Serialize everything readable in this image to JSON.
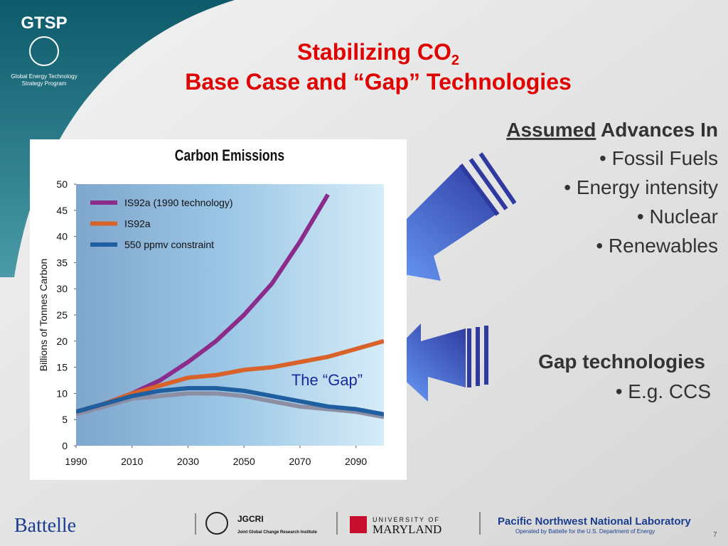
{
  "header": {
    "logo": "GTSP",
    "logo_sub1": "Global Energy Technology",
    "logo_sub2": "Strategy Program"
  },
  "title": {
    "main": "Stabilizing CO",
    "sub": "2",
    "line2": "Base Case and “Gap” Technologies"
  },
  "advances": {
    "heading_underlined": "Assumed",
    "heading_rest": " Advances In",
    "items": [
      "• Fossil Fuels",
      "• Energy intensity",
      "• Nuclear",
      "• Renewables"
    ]
  },
  "gap": {
    "heading": "Gap technologies",
    "items": [
      "• E.g. CCS"
    ]
  },
  "footer": {
    "battelle": "Battelle",
    "jgcri": "JGCRI",
    "jgcri_full": "Joint Global Change Research Institute",
    "umd_top": "UNIVERSITY OF",
    "umd": "MARYLAND",
    "pnnl": "Pacific Northwest National Laboratory",
    "pnnl_sub": "Operated by Battelle for the U.S. Department of Energy",
    "page": "7"
  },
  "chart_data": {
    "type": "line",
    "title": "Carbon Emissions",
    "ylabel": "Billions of Tonnes Carbon",
    "annotation": "The “Gap”",
    "x": [
      1990,
      2000,
      2010,
      2020,
      2030,
      2040,
      2050,
      2060,
      2070,
      2080,
      2090,
      2100
    ],
    "xlim": [
      1990,
      2100
    ],
    "xticks": [
      1990,
      2010,
      2030,
      2050,
      2070,
      2090
    ],
    "ylim": [
      0,
      50
    ],
    "yticks": [
      0,
      5,
      10,
      15,
      20,
      25,
      30,
      35,
      40,
      45,
      50
    ],
    "legend": "upper left",
    "series": [
      {
        "name": null,
        "color": "#8c8fa3",
        "values": [
          6,
          7.5,
          9,
          9.5,
          10,
          10,
          9.5,
          8.5,
          7.5,
          7,
          6.5,
          5.5
        ]
      },
      {
        "name": "IS92a (1990 technology)",
        "color": "#8b2c8a",
        "values": [
          6.5,
          8,
          10,
          12.5,
          16,
          20,
          25,
          31,
          39,
          48,
          null,
          null
        ]
      },
      {
        "name": "IS92a",
        "color": "#d9622b",
        "values": [
          6.5,
          8,
          10,
          11.5,
          13,
          13.5,
          14.5,
          15,
          16,
          17,
          18.5,
          20
        ]
      },
      {
        "name": "550 ppmv constraint",
        "color": "#1f5fa0",
        "values": [
          6.5,
          8,
          9.5,
          10.5,
          11,
          11,
          10.5,
          9.5,
          8.5,
          7.5,
          7,
          6
        ]
      }
    ]
  }
}
